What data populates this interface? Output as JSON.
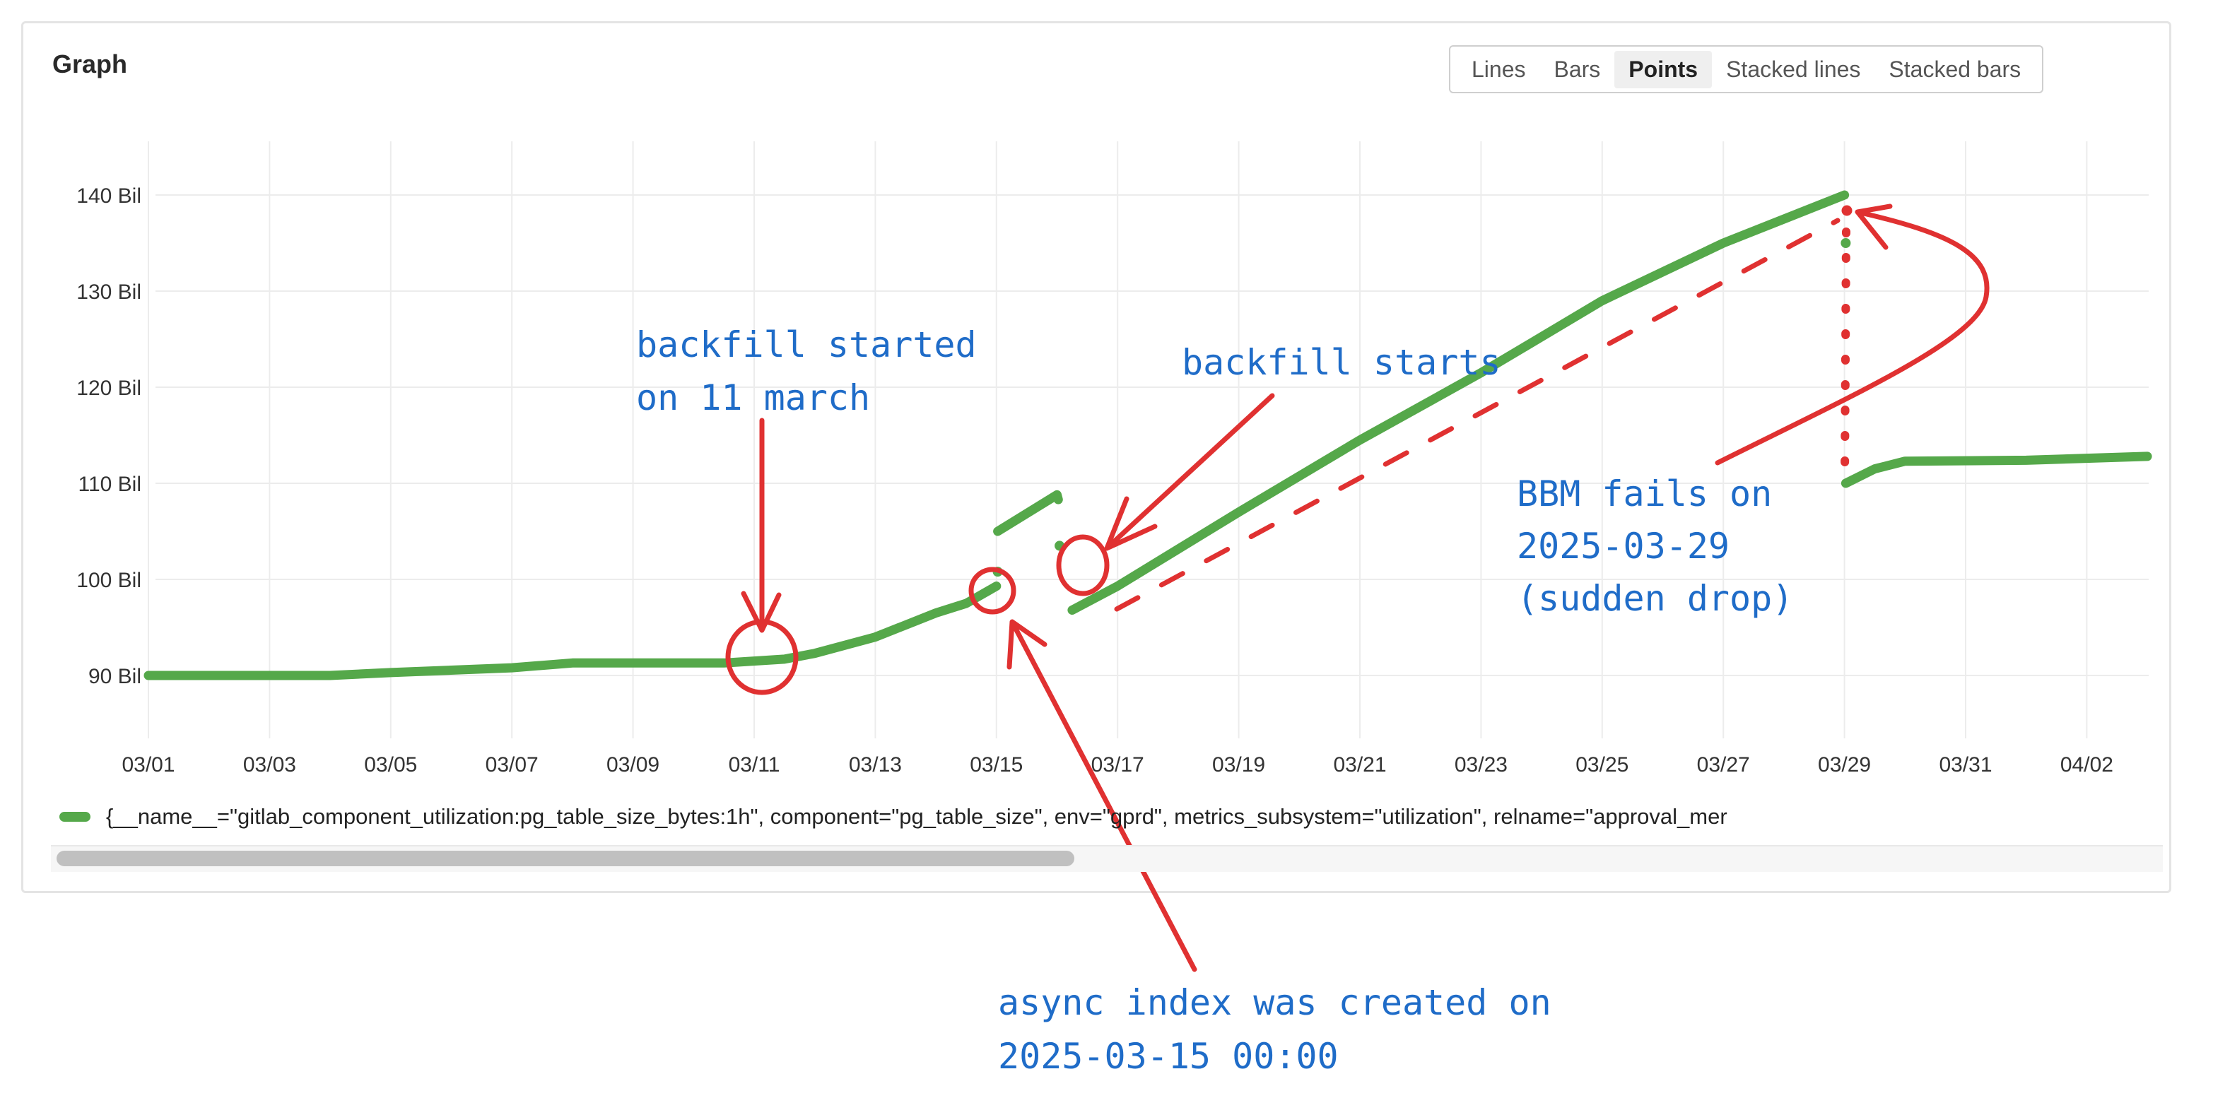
{
  "panel": {
    "title": "Graph",
    "view_modes": [
      {
        "label": "Lines",
        "active": false
      },
      {
        "label": "Bars",
        "active": false
      },
      {
        "label": "Points",
        "active": true
      },
      {
        "label": "Stacked lines",
        "active": false
      },
      {
        "label": "Stacked bars",
        "active": false
      }
    ]
  },
  "legend": {
    "series_label": "{__name__=\"gitlab_component_utilization:pg_table_size_bytes:1h\", component=\"pg_table_size\", env=\"gprd\", metrics_subsystem=\"utilization\", relname=\"approval_mer",
    "color": "#55a84a"
  },
  "chart_data": {
    "type": "scatter",
    "unit": "Bil",
    "ylim": [
      85,
      145
    ],
    "y_ticks": [
      "90 Bil",
      "100 Bil",
      "110 Bil",
      "120 Bil",
      "130 Bil",
      "140 Bil"
    ],
    "y_tick_values": [
      90,
      100,
      110,
      120,
      130,
      140
    ],
    "x_ticks": [
      "03/01",
      "03/03",
      "03/05",
      "03/07",
      "03/09",
      "03/11",
      "03/13",
      "03/15",
      "03/17",
      "03/19",
      "03/21",
      "03/23",
      "03/25",
      "03/27",
      "03/29",
      "03/31",
      "04/02"
    ],
    "grid": true,
    "color": "#55a84a",
    "segments": [
      [
        [
          "2025-03-01T00:00",
          90.0
        ],
        [
          "2025-03-04T00:00",
          90.0
        ],
        [
          "2025-03-05T00:00",
          90.3
        ],
        [
          "2025-03-07T00:00",
          90.8
        ],
        [
          "2025-03-08T00:00",
          91.3
        ],
        [
          "2025-03-10T12:00",
          91.3
        ],
        [
          "2025-03-11T12:00",
          91.7
        ],
        [
          "2025-03-12T00:00",
          92.3
        ],
        [
          "2025-03-13T00:00",
          94.0
        ],
        [
          "2025-03-14T00:00",
          96.5
        ],
        [
          "2025-03-14T12:00",
          97.5
        ],
        [
          "2025-03-15T00:00",
          99.3
        ]
      ],
      [
        [
          "2025-03-15T00:30",
          100.8
        ]
      ],
      [
        [
          "2025-03-15T00:30",
          105.0
        ],
        [
          "2025-03-16T00:00",
          108.8
        ],
        [
          "2025-03-16T00:30",
          108.3
        ]
      ],
      [
        [
          "2025-03-16T01:00",
          103.5
        ]
      ],
      [
        [
          "2025-03-16T06:00",
          96.8
        ],
        [
          "2025-03-17T00:00",
          99.3
        ],
        [
          "2025-03-19T00:00",
          107.0
        ],
        [
          "2025-03-21T00:00",
          114.5
        ],
        [
          "2025-03-23T00:00",
          121.5
        ],
        [
          "2025-03-25T00:00",
          129.0
        ],
        [
          "2025-03-27T00:00",
          135.0
        ],
        [
          "2025-03-29T00:00",
          140.0
        ]
      ],
      [
        [
          "2025-03-29T00:30",
          135.0
        ]
      ],
      [
        [
          "2025-03-29T00:30",
          110.0
        ],
        [
          "2025-03-29T12:00",
          111.5
        ],
        [
          "2025-03-30T00:00",
          112.3
        ],
        [
          "2025-04-01T00:00",
          112.4
        ],
        [
          "2025-04-03T00:00",
          112.8
        ]
      ]
    ]
  },
  "annotations": {
    "backfill_started": [
      "backfill started",
      "on 11 march"
    ],
    "backfill_starts": [
      "backfill starts"
    ],
    "bbm_fails": [
      "BBM fails on",
      "2025-03-29",
      "(sudden drop)"
    ],
    "async_index": [
      "async index was created on",
      "2025-03-15 00:00"
    ],
    "color_text": "#1f6cc8",
    "color_marks": "#e03131"
  }
}
